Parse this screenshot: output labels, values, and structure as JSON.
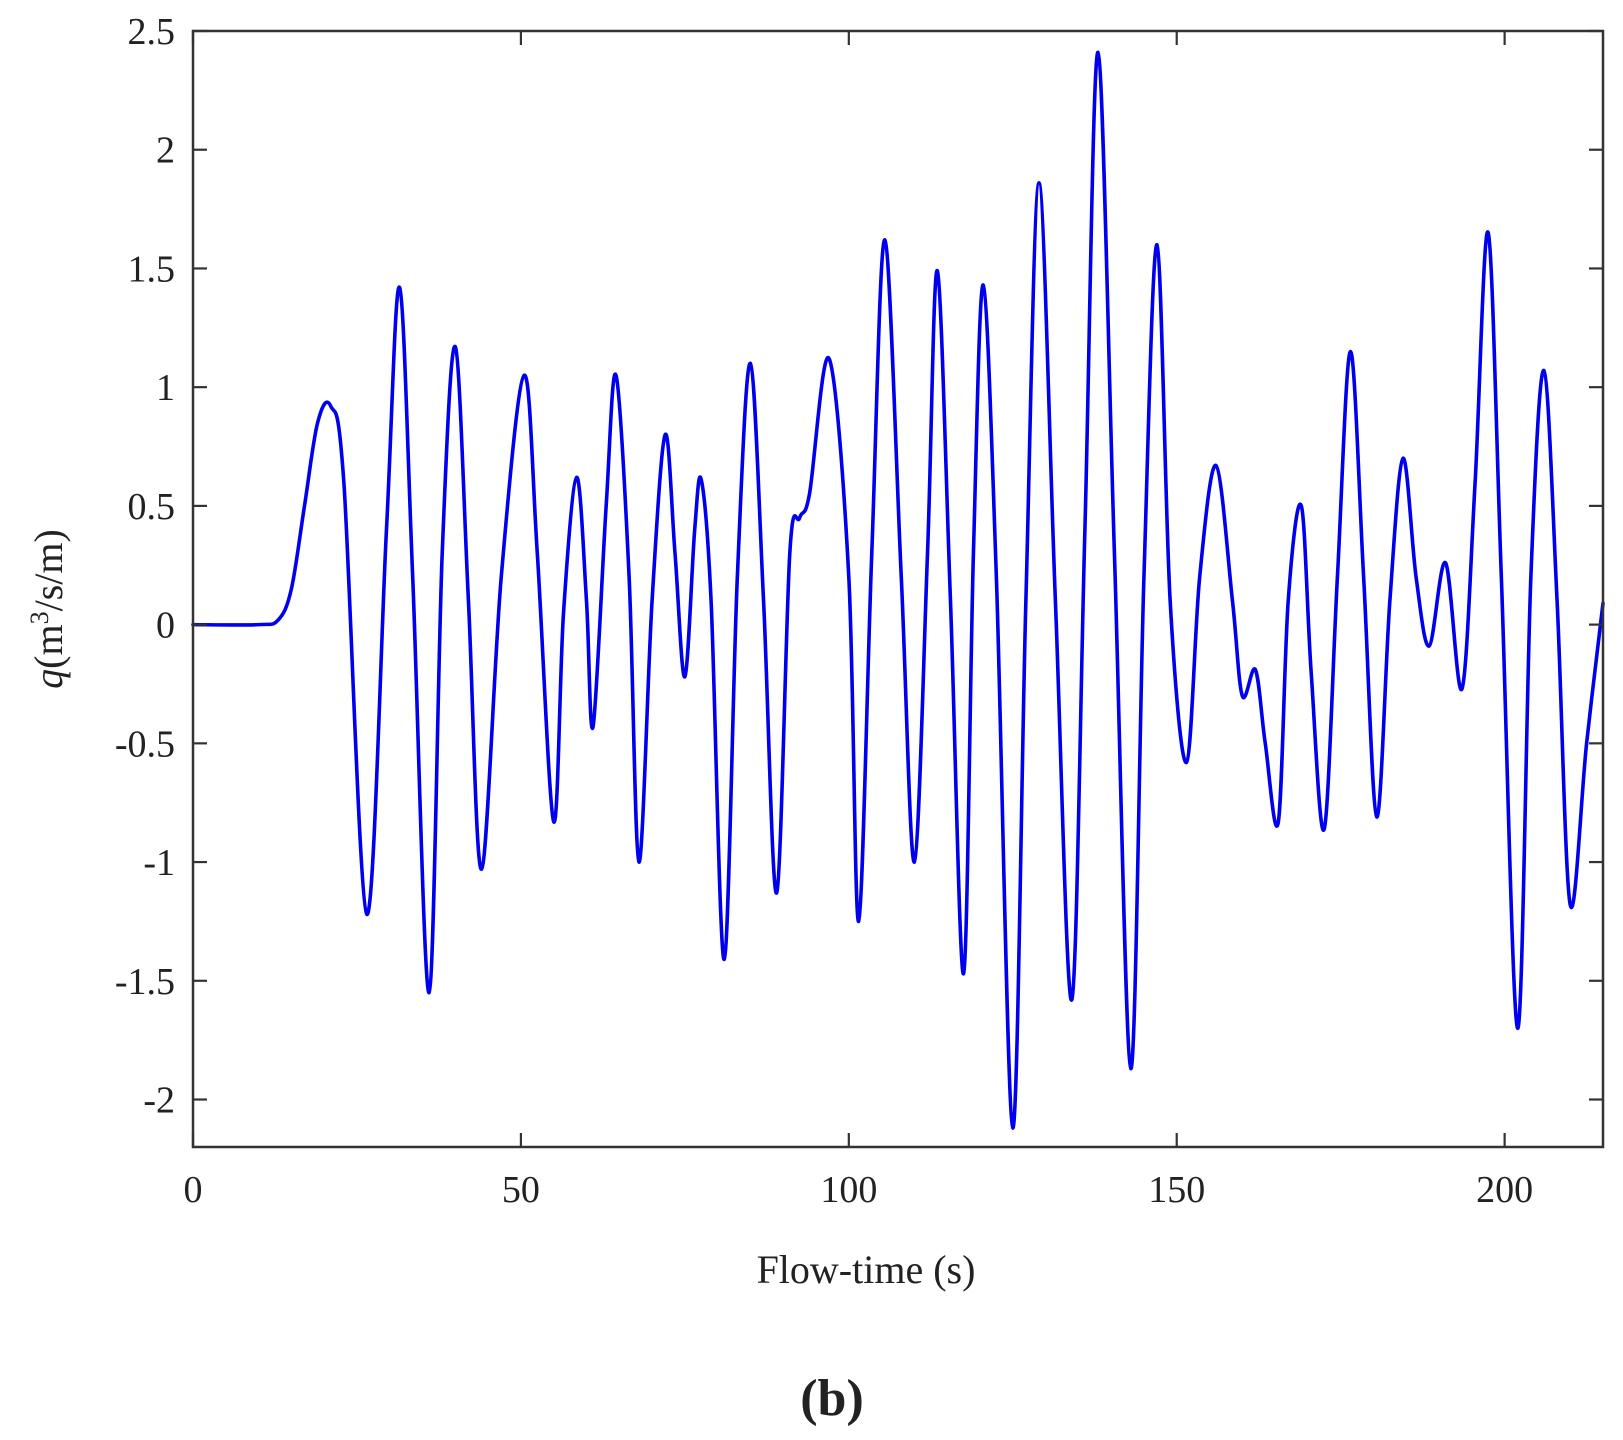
{
  "panel_label": "(b)",
  "colors": {
    "series": "#0000ee",
    "axis": "#333333",
    "text": "#222222",
    "background": "#ffffff"
  },
  "chart_data": {
    "type": "line",
    "title": "",
    "xlabel": "Flow-time (s)",
    "ylabel": {
      "symbol": "q",
      "open": "(m",
      "sup": "3",
      "close": "/s/m)"
    },
    "xlim": [
      0,
      215
    ],
    "ylim": [
      -2.2,
      2.5
    ],
    "xticks": [
      0,
      50,
      100,
      150,
      200
    ],
    "xtick_labels": [
      "0",
      "50",
      "100",
      "150",
      "200"
    ],
    "yticks": [
      2.5,
      2,
      1.5,
      1,
      0.5,
      0,
      -0.5,
      -1,
      -1.5,
      -2
    ],
    "ytick_labels": [
      "2.5",
      "2",
      "1.5",
      "1",
      "0.5",
      "0",
      "-0.5",
      "-1",
      "-1.5",
      "-2"
    ],
    "grid": false,
    "legend": "none",
    "series": [
      {
        "x": [
          0,
          10,
          13,
          15,
          17,
          19,
          21,
          23,
          26.5,
          29.5,
          31.5,
          33.5,
          36,
          38,
          40,
          42,
          44,
          47,
          50.5,
          52.5,
          55,
          56.5,
          58.5,
          60,
          61,
          63,
          64.5,
          66.5,
          68,
          70,
          72,
          73.5,
          75,
          76.5,
          77.5,
          79,
          81,
          83,
          85,
          87,
          89,
          91,
          92.5,
          94,
          97,
          100,
          101.5,
          103.5,
          105.5,
          108,
          110,
          112,
          113.5,
          115.5,
          117.5,
          119,
          120.5,
          122.5,
          125,
          127,
          129,
          131.5,
          134,
          136,
          138,
          140.5,
          143,
          145,
          147,
          149,
          151.5,
          153.5,
          156,
          158.5,
          160,
          162,
          163.5,
          165.5,
          167,
          169,
          170.5,
          172.5,
          174.5,
          176.5,
          178.5,
          180.5,
          182.5,
          184.5,
          186.5,
          188.5,
          191,
          193.5,
          195.5,
          197.5,
          199.5,
          202,
          204,
          206,
          208,
          210,
          212.5,
          215
        ],
        "y": [
          0,
          0,
          0.02,
          0.15,
          0.5,
          0.85,
          0.92,
          0.6,
          -1.22,
          0.4,
          1.42,
          0.2,
          -1.55,
          0.3,
          1.17,
          0.1,
          -1.03,
          0.2,
          1.05,
          0.3,
          -0.83,
          0.05,
          0.62,
          0.1,
          -0.43,
          0.5,
          1.05,
          0.2,
          -1.0,
          0.1,
          0.8,
          0.3,
          -0.22,
          0.4,
          0.61,
          0.1,
          -1.41,
          0.2,
          1.1,
          0.1,
          -1.13,
          0.3,
          0.45,
          0.55,
          1.12,
          0.2,
          -1.25,
          0.3,
          1.62,
          0.2,
          -1.0,
          0.3,
          1.49,
          0.1,
          -1.47,
          0.3,
          1.43,
          0.2,
          -2.12,
          0.1,
          1.86,
          0.1,
          -1.58,
          0.4,
          2.41,
          0.3,
          -1.87,
          0.2,
          1.6,
          0.1,
          -0.58,
          0.2,
          0.67,
          0.1,
          -0.3,
          -0.19,
          -0.5,
          -0.83,
          0.1,
          0.5,
          -0.2,
          -0.86,
          0.2,
          1.15,
          0.2,
          -0.81,
          0.1,
          0.7,
          0.2,
          -0.09,
          0.26,
          -0.27,
          0.6,
          1.65,
          0.2,
          -1.7,
          0.2,
          1.07,
          0.1,
          -1.18,
          -0.5,
          0.09
        ]
      }
    ]
  }
}
